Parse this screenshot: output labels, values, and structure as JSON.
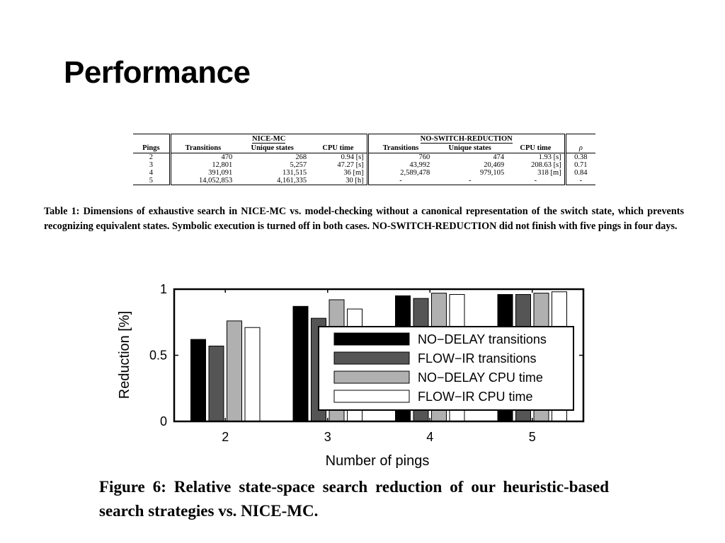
{
  "slide": {
    "title": "Performance"
  },
  "table": {
    "groups": [
      "NICE-MC",
      "NO-SWITCH-REDUCTION"
    ],
    "headers": [
      "Pings",
      "Transitions",
      "Unique states",
      "CPU time",
      "Transitions",
      "Unique states",
      "CPU time",
      "ρ"
    ],
    "rows": [
      [
        "2",
        "470",
        "268",
        "0.94 [s]",
        "760",
        "474",
        "1.93 [s]",
        "0.38"
      ],
      [
        "3",
        "12,801",
        "5,257",
        "47.27 [s]",
        "43,992",
        "20,469",
        "208.63 [s]",
        "0.71"
      ],
      [
        "4",
        "391,091",
        "131,515",
        "36 [m]",
        "2,589,478",
        "979,105",
        "318 [m]",
        "0.84"
      ],
      [
        "5",
        "14,052,853",
        "4,161,335",
        "30 [h]",
        "-",
        "-",
        "-",
        "-"
      ]
    ],
    "caption": "Table 1: Dimensions of exhaustive search in NICE-MC vs. model-checking without a canonical representation of the switch state, which prevents recognizing equivalent states. Symbolic execution is turned off in both cases. NO-SWITCH-REDUCTION did not finish with five pings in four days."
  },
  "chart_data": {
    "type": "bar",
    "categories": [
      "2",
      "3",
      "4",
      "5"
    ],
    "series": [
      {
        "name": "NO−DELAY transitions",
        "values": [
          0.62,
          0.87,
          0.95,
          0.96
        ],
        "color": "#000000"
      },
      {
        "name": "FLOW−IR transitions",
        "values": [
          0.57,
          0.78,
          0.93,
          0.96
        ],
        "color": "#555555"
      },
      {
        "name": "NO−DELAY CPU time",
        "values": [
          0.76,
          0.92,
          0.97,
          0.97
        ],
        "color": "#b0b0b0"
      },
      {
        "name": "FLOW−IR CPU time",
        "values": [
          0.71,
          0.85,
          0.96,
          0.98
        ],
        "color": "#ffffff"
      }
    ],
    "xlabel": "Number of pings",
    "ylabel": "Reduction [%]",
    "ylim": [
      0,
      1
    ],
    "yticks": [
      "0",
      "0.5",
      "1"
    ],
    "legend_position": "right",
    "grid": false
  },
  "figure": {
    "caption": "Figure 6: Relative state-space search reduction of our heuristic-based search strategies vs. NICE-MC."
  }
}
